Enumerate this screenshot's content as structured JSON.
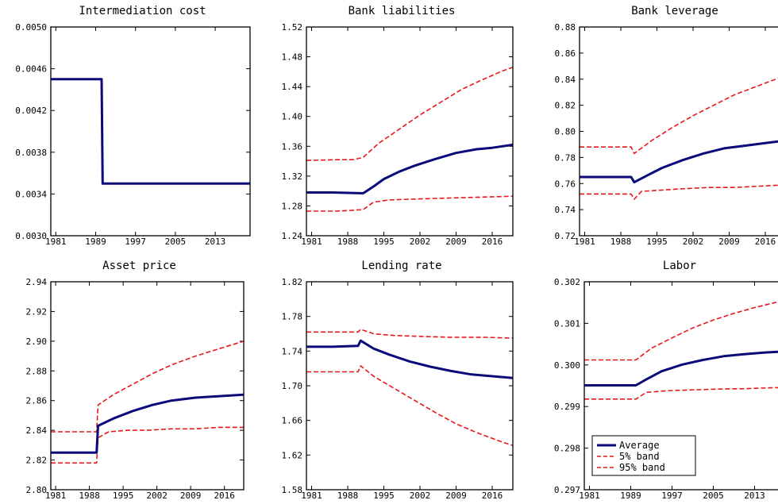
{
  "chart_data": [
    {
      "type": "line",
      "title": "Intermediation cost",
      "ylim": [
        0.003,
        0.005
      ],
      "yticks": [
        "0.0030",
        "0.0034",
        "0.0038",
        "0.0042",
        "0.0046",
        "0.0050"
      ],
      "xlim": [
        1980,
        2020
      ],
      "xticks": [
        1981,
        1989,
        1997,
        2005,
        2013
      ],
      "series": [
        {
          "color": "#0a0a7a",
          "style": "solid",
          "width": 3,
          "points": [
            [
              1980,
              0.0045
            ],
            [
              1990.2,
              0.0045
            ],
            [
              1990.4,
              0.0035
            ],
            [
              2020,
              0.0035
            ]
          ]
        }
      ]
    },
    {
      "type": "line",
      "title": "Bank liabilities",
      "ylim": [
        1.24,
        1.52
      ],
      "yticks": [
        "1.24",
        "1.28",
        "1.32",
        "1.36",
        "1.40",
        "1.44",
        "1.48",
        "1.52"
      ],
      "xlim": [
        1980,
        2020
      ],
      "xticks": [
        1981,
        1988,
        1995,
        2002,
        2009,
        2016
      ],
      "series": [
        {
          "color": "#0a0a7a",
          "style": "solid",
          "width": 3,
          "points": [
            [
              1980,
              1.298
            ],
            [
              1985,
              1.298
            ],
            [
              1991,
              1.297
            ],
            [
              1993,
              1.306
            ],
            [
              1995,
              1.316
            ],
            [
              1998,
              1.326
            ],
            [
              2001,
              1.334
            ],
            [
              2005,
              1.343
            ],
            [
              2009,
              1.351
            ],
            [
              2013,
              1.356
            ],
            [
              2016,
              1.358
            ],
            [
              2020,
              1.362
            ]
          ]
        },
        {
          "name": "5% band",
          "color": "#e8171b",
          "style": "dashed",
          "width": 1.6,
          "points": [
            [
              1980,
              1.273
            ],
            [
              1986,
              1.273
            ],
            [
              1991,
              1.275
            ],
            [
              1993,
              1.285
            ],
            [
              1996,
              1.288
            ],
            [
              2000,
              1.289
            ],
            [
              2005,
              1.29
            ],
            [
              2010,
              1.291
            ],
            [
              2015,
              1.292
            ],
            [
              2020,
              1.293
            ]
          ]
        },
        {
          "name": "95% band",
          "color": "#e8171b",
          "style": "dashed",
          "width": 1.6,
          "points": [
            [
              1980,
              1.341
            ],
            [
              1986,
              1.342
            ],
            [
              1989,
              1.342
            ],
            [
              1991,
              1.345
            ],
            [
              1994,
              1.364
            ],
            [
              1998,
              1.383
            ],
            [
              2002,
              1.402
            ],
            [
              2006,
              1.419
            ],
            [
              2010,
              1.436
            ],
            [
              2014,
              1.449
            ],
            [
              2018,
              1.461
            ],
            [
              2020,
              1.466
            ]
          ]
        }
      ]
    },
    {
      "type": "line",
      "title": "Bank leverage",
      "ylim": [
        0.72,
        0.88
      ],
      "yticks": [
        "0.72",
        "0.74",
        "0.76",
        "0.78",
        "0.80",
        "0.82",
        "0.84",
        "0.86",
        "0.88"
      ],
      "xlim": [
        1980,
        2020
      ],
      "xticks": [
        1981,
        1988,
        1995,
        2002,
        2009,
        2016
      ],
      "series": [
        {
          "color": "#0a0a7a",
          "style": "solid",
          "width": 3,
          "points": [
            [
              1980,
              0.765
            ],
            [
              1985,
              0.765
            ],
            [
              1990,
              0.765
            ],
            [
              1990.6,
              0.761
            ],
            [
              1993,
              0.766
            ],
            [
              1996,
              0.772
            ],
            [
              2000,
              0.778
            ],
            [
              2004,
              0.783
            ],
            [
              2008,
              0.787
            ],
            [
              2012,
              0.789
            ],
            [
              2016,
              0.791
            ],
            [
              2020,
              0.793
            ]
          ]
        },
        {
          "name": "5% band",
          "color": "#e8171b",
          "style": "dashed",
          "width": 1.6,
          "points": [
            [
              1980,
              0.752
            ],
            [
              1986,
              0.752
            ],
            [
              1990,
              0.752
            ],
            [
              1990.6,
              0.748
            ],
            [
              1992,
              0.754
            ],
            [
              1996,
              0.755
            ],
            [
              2000,
              0.756
            ],
            [
              2005,
              0.757
            ],
            [
              2010,
              0.757
            ],
            [
              2015,
              0.758
            ],
            [
              2020,
              0.759
            ]
          ]
        },
        {
          "name": "95% band",
          "color": "#e8171b",
          "style": "dashed",
          "width": 1.6,
          "points": [
            [
              1980,
              0.788
            ],
            [
              1986,
              0.788
            ],
            [
              1990,
              0.788
            ],
            [
              1990.6,
              0.783
            ],
            [
              1994,
              0.793
            ],
            [
              1998,
              0.803
            ],
            [
              2002,
              0.812
            ],
            [
              2006,
              0.82
            ],
            [
              2010,
              0.828
            ],
            [
              2014,
              0.834
            ],
            [
              2018,
              0.84
            ],
            [
              2020,
              0.842
            ]
          ]
        }
      ]
    },
    {
      "type": "line",
      "title": "Asset price",
      "ylim": [
        2.8,
        2.94
      ],
      "yticks": [
        "2.80",
        "2.82",
        "2.84",
        "2.86",
        "2.88",
        "2.90",
        "2.92",
        "2.94"
      ],
      "xlim": [
        1980,
        2020
      ],
      "xticks": [
        1981,
        1988,
        1995,
        2002,
        2009,
        2016
      ],
      "series": [
        {
          "color": "#0a0a7a",
          "style": "solid",
          "width": 3,
          "points": [
            [
              1980,
              2.825
            ],
            [
              1985,
              2.825
            ],
            [
              1989.5,
              2.825
            ],
            [
              1989.8,
              2.843
            ],
            [
              1993,
              2.848
            ],
            [
              1997,
              2.853
            ],
            [
              2001,
              2.857
            ],
            [
              2005,
              2.86
            ],
            [
              2010,
              2.862
            ],
            [
              2015,
              2.863
            ],
            [
              2020,
              2.864
            ]
          ]
        },
        {
          "name": "5% band",
          "color": "#e8171b",
          "style": "dashed",
          "width": 1.6,
          "points": [
            [
              1980,
              2.818
            ],
            [
              1985,
              2.818
            ],
            [
              1989.5,
              2.818
            ],
            [
              1989.8,
              2.835
            ],
            [
              1992,
              2.839
            ],
            [
              1996,
              2.84
            ],
            [
              2000,
              2.84
            ],
            [
              2005,
              2.841
            ],
            [
              2010,
              2.841
            ],
            [
              2015,
              2.842
            ],
            [
              2020,
              2.842
            ]
          ]
        },
        {
          "name": "95% band",
          "color": "#e8171b",
          "style": "dashed",
          "width": 1.6,
          "points": [
            [
              1980,
              2.839
            ],
            [
              1985,
              2.839
            ],
            [
              1989.5,
              2.839
            ],
            [
              1989.8,
              2.857
            ],
            [
              1993,
              2.864
            ],
            [
              1997,
              2.871
            ],
            [
              2001,
              2.878
            ],
            [
              2005,
              2.884
            ],
            [
              2010,
              2.89
            ],
            [
              2015,
              2.895
            ],
            [
              2020,
              2.9
            ]
          ]
        }
      ]
    },
    {
      "type": "line",
      "title": "Lending rate",
      "ylim": [
        1.58,
        1.82
      ],
      "yticks": [
        "1.58",
        "1.62",
        "1.66",
        "1.70",
        "1.74",
        "1.78",
        "1.82"
      ],
      "xlim": [
        1980,
        2020
      ],
      "xticks": [
        1981,
        1988,
        1995,
        2002,
        2009,
        2016
      ],
      "series": [
        {
          "color": "#0a0a7a",
          "style": "solid",
          "width": 3,
          "points": [
            [
              1980,
              1.745
            ],
            [
              1985,
              1.745
            ],
            [
              1990,
              1.746
            ],
            [
              1990.5,
              1.752
            ],
            [
              1993,
              1.743
            ],
            [
              1996,
              1.736
            ],
            [
              2000,
              1.728
            ],
            [
              2004,
              1.722
            ],
            [
              2008,
              1.717
            ],
            [
              2012,
              1.713
            ],
            [
              2016,
              1.711
            ],
            [
              2020,
              1.709
            ]
          ]
        },
        {
          "name": "5% band",
          "color": "#e8171b",
          "style": "dashed",
          "width": 1.6,
          "points": [
            [
              1980,
              1.716
            ],
            [
              1985,
              1.716
            ],
            [
              1990,
              1.716
            ],
            [
              1990.5,
              1.723
            ],
            [
              1993,
              1.711
            ],
            [
              1997,
              1.697
            ],
            [
              2001,
              1.683
            ],
            [
              2005,
              1.669
            ],
            [
              2009,
              1.656
            ],
            [
              2013,
              1.646
            ],
            [
              2017,
              1.637
            ],
            [
              2020,
              1.631
            ]
          ]
        },
        {
          "name": "95% band",
          "color": "#e8171b",
          "style": "dashed",
          "width": 1.6,
          "points": [
            [
              1980,
              1.762
            ],
            [
              1985,
              1.762
            ],
            [
              1990,
              1.762
            ],
            [
              1990.5,
              1.765
            ],
            [
              1993,
              1.76
            ],
            [
              1997,
              1.758
            ],
            [
              2002,
              1.757
            ],
            [
              2008,
              1.756
            ],
            [
              2014,
              1.756
            ],
            [
              2020,
              1.755
            ]
          ]
        }
      ]
    },
    {
      "type": "line",
      "title": "Labor",
      "ylim": [
        0.297,
        0.302
      ],
      "yticks": [
        "0.297",
        "0.298",
        "0.299",
        "0.300",
        "0.301",
        "0.302"
      ],
      "xlim": [
        1980,
        2020
      ],
      "xticks": [
        1981,
        1989,
        1997,
        2005,
        2013
      ],
      "legend": {
        "placement": "bottom-left",
        "entries": [
          "Average",
          "5% band",
          "95% band"
        ]
      },
      "series": [
        {
          "name": "Average",
          "color": "#0a0a7a",
          "style": "solid",
          "width": 3,
          "points": [
            [
              1980,
              0.29951
            ],
            [
              1986,
              0.29951
            ],
            [
              1990,
              0.29951
            ],
            [
              1992,
              0.29965
            ],
            [
              1995,
              0.29985
            ],
            [
              1999,
              0.30001
            ],
            [
              2003,
              0.30012
            ],
            [
              2007,
              0.30021
            ],
            [
              2011,
              0.30026
            ],
            [
              2015,
              0.3003
            ],
            [
              2020,
              0.30033
            ]
          ]
        },
        {
          "name": "5% band",
          "color": "#e8171b",
          "style": "dashed",
          "width": 1.6,
          "points": [
            [
              1980,
              0.29918
            ],
            [
              1986,
              0.29918
            ],
            [
              1990,
              0.29918
            ],
            [
              1992,
              0.29934
            ],
            [
              1996,
              0.29938
            ],
            [
              2001,
              0.2994
            ],
            [
              2006,
              0.29942
            ],
            [
              2011,
              0.29943
            ],
            [
              2016,
              0.29945
            ],
            [
              2020,
              0.29946
            ]
          ]
        },
        {
          "name": "95% band",
          "color": "#e8171b",
          "style": "dashed",
          "width": 1.6,
          "points": [
            [
              1980,
              0.30012
            ],
            [
              1986,
              0.30012
            ],
            [
              1990,
              0.30012
            ],
            [
              1993,
              0.3004
            ],
            [
              1997,
              0.30065
            ],
            [
              2001,
              0.30089
            ],
            [
              2005,
              0.30108
            ],
            [
              2009,
              0.30124
            ],
            [
              2013,
              0.30138
            ],
            [
              2017,
              0.3015
            ],
            [
              2020,
              0.30157
            ]
          ]
        }
      ]
    }
  ]
}
